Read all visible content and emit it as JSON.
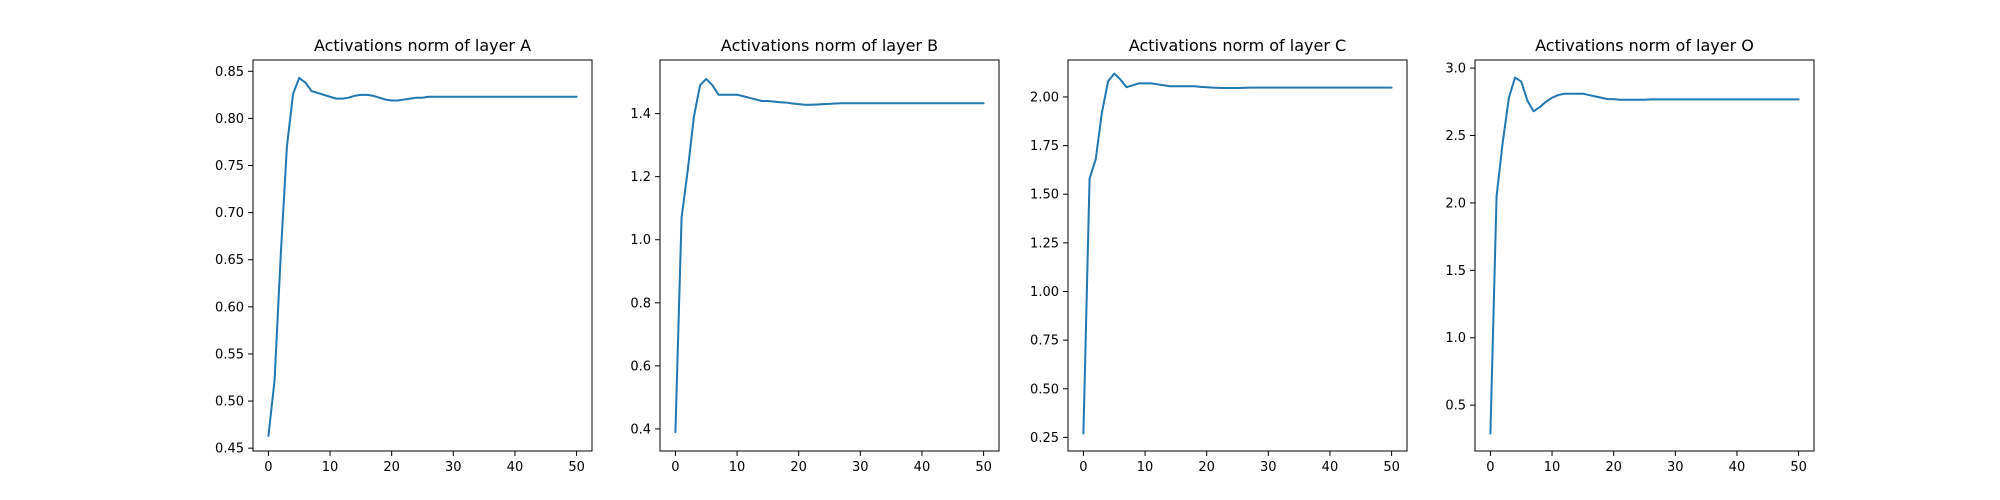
{
  "figure": {
    "background": "#ffffff",
    "series_color": "#1f77b4"
  },
  "chart_data": [
    {
      "type": "line",
      "title": "Activations norm of layer A",
      "xlabel": "",
      "ylabel": "",
      "xlim": [
        -2.5,
        52.5
      ],
      "ylim": [
        0.447,
        0.862
      ],
      "xticks": [
        0,
        10,
        20,
        30,
        40,
        50
      ],
      "yticks": [
        0.45,
        0.5,
        0.55,
        0.6,
        0.65,
        0.7,
        0.75,
        0.8,
        0.85
      ],
      "ytick_labels": [
        "0.45",
        "0.50",
        "0.55",
        "0.60",
        "0.65",
        "0.70",
        "0.75",
        "0.80",
        "0.85"
      ],
      "grid": false,
      "x": [
        0,
        1,
        2,
        3,
        4,
        5,
        6,
        7,
        8,
        9,
        10,
        11,
        12,
        13,
        14,
        15,
        16,
        17,
        18,
        19,
        20,
        21,
        22,
        23,
        24,
        25,
        26,
        27,
        28,
        29,
        30,
        31,
        32,
        33,
        34,
        35,
        36,
        37,
        38,
        39,
        40,
        41,
        42,
        43,
        44,
        45,
        46,
        47,
        48,
        49,
        50
      ],
      "y": [
        0.463,
        0.522,
        0.655,
        0.77,
        0.826,
        0.843,
        0.838,
        0.829,
        0.827,
        0.825,
        0.823,
        0.821,
        0.821,
        0.822,
        0.824,
        0.825,
        0.825,
        0.824,
        0.822,
        0.82,
        0.819,
        0.819,
        0.82,
        0.821,
        0.822,
        0.822,
        0.823,
        0.823,
        0.823,
        0.823,
        0.823,
        0.823,
        0.823,
        0.823,
        0.823,
        0.823,
        0.823,
        0.823,
        0.823,
        0.823,
        0.823,
        0.823,
        0.823,
        0.823,
        0.823,
        0.823,
        0.823,
        0.823,
        0.823,
        0.823,
        0.823
      ]
    },
    {
      "type": "line",
      "title": "Activations norm of layer B",
      "xlabel": "",
      "ylabel": "",
      "xlim": [
        -2.5,
        52.5
      ],
      "ylim": [
        0.33,
        1.57
      ],
      "xticks": [
        0,
        10,
        20,
        30,
        40,
        50
      ],
      "yticks": [
        0.4,
        0.6,
        0.8,
        1.0,
        1.2,
        1.4
      ],
      "ytick_labels": [
        "0.4",
        "0.6",
        "0.8",
        "1.0",
        "1.2",
        "1.4"
      ],
      "grid": false,
      "x": [
        0,
        1,
        2,
        3,
        4,
        5,
        6,
        7,
        8,
        9,
        10,
        11,
        12,
        13,
        14,
        15,
        16,
        17,
        18,
        19,
        20,
        21,
        22,
        23,
        24,
        25,
        26,
        27,
        28,
        29,
        30,
        31,
        32,
        33,
        34,
        35,
        36,
        37,
        38,
        39,
        40,
        41,
        42,
        43,
        44,
        45,
        46,
        47,
        48,
        49,
        50
      ],
      "y": [
        0.39,
        1.07,
        1.22,
        1.39,
        1.49,
        1.51,
        1.49,
        1.46,
        1.46,
        1.46,
        1.46,
        1.455,
        1.45,
        1.445,
        1.44,
        1.44,
        1.438,
        1.436,
        1.435,
        1.432,
        1.43,
        1.428,
        1.428,
        1.429,
        1.43,
        1.431,
        1.432,
        1.433,
        1.433,
        1.433,
        1.433,
        1.433,
        1.433,
        1.433,
        1.433,
        1.433,
        1.433,
        1.433,
        1.433,
        1.433,
        1.433,
        1.433,
        1.433,
        1.433,
        1.433,
        1.433,
        1.433,
        1.433,
        1.433,
        1.433,
        1.433
      ]
    },
    {
      "type": "line",
      "title": "Activations norm of layer C",
      "xlabel": "",
      "ylabel": "",
      "xlim": [
        -2.5,
        52.5
      ],
      "ylim": [
        0.18,
        2.19
      ],
      "xticks": [
        0,
        10,
        20,
        30,
        40,
        50
      ],
      "yticks": [
        0.25,
        0.5,
        0.75,
        1.0,
        1.25,
        1.5,
        1.75,
        2.0
      ],
      "ytick_labels": [
        "0.25",
        "0.50",
        "0.75",
        "1.00",
        "1.25",
        "1.50",
        "1.75",
        "2.00"
      ],
      "grid": false,
      "x": [
        0,
        1,
        2,
        3,
        4,
        5,
        6,
        7,
        8,
        9,
        10,
        11,
        12,
        13,
        14,
        15,
        16,
        17,
        18,
        19,
        20,
        21,
        22,
        23,
        24,
        25,
        26,
        27,
        28,
        29,
        30,
        31,
        32,
        33,
        34,
        35,
        36,
        37,
        38,
        39,
        40,
        41,
        42,
        43,
        44,
        45,
        46,
        47,
        48,
        49,
        50
      ],
      "y": [
        0.27,
        1.58,
        1.68,
        1.92,
        2.08,
        2.12,
        2.09,
        2.05,
        2.06,
        2.07,
        2.07,
        2.07,
        2.065,
        2.06,
        2.055,
        2.055,
        2.055,
        2.055,
        2.055,
        2.052,
        2.05,
        2.048,
        2.047,
        2.046,
        2.046,
        2.046,
        2.047,
        2.048,
        2.048,
        2.048,
        2.048,
        2.048,
        2.048,
        2.048,
        2.048,
        2.048,
        2.048,
        2.048,
        2.048,
        2.048,
        2.048,
        2.048,
        2.048,
        2.048,
        2.048,
        2.048,
        2.048,
        2.048,
        2.048,
        2.048,
        2.048
      ]
    },
    {
      "type": "line",
      "title": "Activations norm of layer O",
      "xlabel": "",
      "ylabel": "",
      "xlim": [
        -2.5,
        52.5
      ],
      "ylim": [
        0.16,
        3.06
      ],
      "xticks": [
        0,
        10,
        20,
        30,
        40,
        50
      ],
      "yticks": [
        0.5,
        1.0,
        1.5,
        2.0,
        2.5,
        3.0
      ],
      "ytick_labels": [
        "0.5",
        "1.0",
        "1.5",
        "2.0",
        "2.5",
        "3.0"
      ],
      "grid": false,
      "x": [
        0,
        1,
        2,
        3,
        4,
        5,
        6,
        7,
        8,
        9,
        10,
        11,
        12,
        13,
        14,
        15,
        16,
        17,
        18,
        19,
        20,
        21,
        22,
        23,
        24,
        25,
        26,
        27,
        28,
        29,
        30,
        31,
        32,
        33,
        34,
        35,
        36,
        37,
        38,
        39,
        40,
        41,
        42,
        43,
        44,
        45,
        46,
        47,
        48,
        49,
        50
      ],
      "y": [
        0.29,
        2.05,
        2.45,
        2.78,
        2.93,
        2.9,
        2.76,
        2.68,
        2.71,
        2.75,
        2.78,
        2.8,
        2.81,
        2.81,
        2.81,
        2.81,
        2.8,
        2.79,
        2.78,
        2.77,
        2.77,
        2.765,
        2.765,
        2.765,
        2.765,
        2.765,
        2.768,
        2.768,
        2.768,
        2.768,
        2.768,
        2.768,
        2.768,
        2.768,
        2.768,
        2.768,
        2.768,
        2.768,
        2.768,
        2.768,
        2.768,
        2.768,
        2.768,
        2.768,
        2.768,
        2.768,
        2.768,
        2.768,
        2.768,
        2.768,
        2.768
      ]
    }
  ]
}
